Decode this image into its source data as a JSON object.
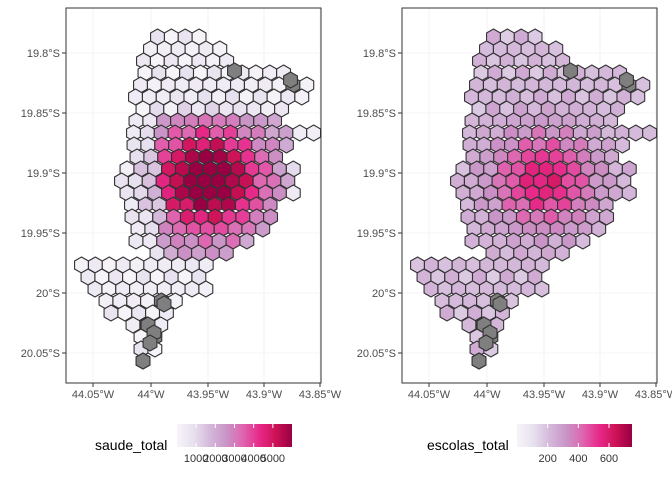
{
  "x_ticks": [
    "44.05°W",
    "44°W",
    "43.95°W",
    "43.9°W",
    "43.85°W"
  ],
  "y_ticks": [
    "19.8°S",
    "19.85°S",
    "19.9°S",
    "19.95°S",
    "20°S",
    "20.05°S"
  ],
  "colors": {
    "na_fill": "#7f7f7f",
    "hex_outline": "#333333",
    "panel_border": "#333333",
    "grid": "#ebebeb",
    "scale": [
      "#f7f4f9",
      "#e7e1ef",
      "#d4b9da",
      "#c994c7",
      "#df65b0",
      "#e7298a",
      "#ce1256",
      "#980043"
    ]
  },
  "panels": [
    {
      "id": "saude",
      "legend": {
        "title": "saude_total",
        "ticks": [
          "1000",
          "2000",
          "3000",
          "4000",
          "5000"
        ]
      }
    },
    {
      "id": "escolas",
      "legend": {
        "title": "escolas_total",
        "ticks": [
          "200",
          "400",
          "600"
        ]
      }
    }
  ],
  "chart_data": [
    {
      "type": "heatmap",
      "geometry": "hexagonal grid over Belo Horizonte (lon/lat)",
      "variable": "saude_total",
      "xlim": [
        -44.07,
        -43.85
      ],
      "ylim": [
        -20.068,
        -19.762
      ],
      "legend_range": [
        0,
        6000
      ],
      "x_ticks": [
        -44.05,
        -44.0,
        -43.95,
        -43.9,
        -43.85
      ],
      "y_ticks": [
        -19.8,
        -19.85,
        -19.9,
        -19.95,
        -20.0,
        -20.05
      ],
      "grid": true,
      "legend_position": "bottom",
      "missing_values": "gray hexes",
      "pattern": "values peak (~5000) in the central south-east core around 43.95°W 19.92°S and fall to near 0 at the edges"
    },
    {
      "type": "heatmap",
      "geometry": "hexagonal grid over Belo Horizonte (lon/lat)",
      "variable": "escolas_total",
      "xlim": [
        -44.07,
        -43.85
      ],
      "ylim": [
        -20.068,
        -19.762
      ],
      "legend_range": [
        0,
        750
      ],
      "x_ticks": [
        -44.05,
        -44.0,
        -43.95,
        -43.9,
        -43.85
      ],
      "y_ticks": [
        -19.8,
        -19.85,
        -19.9,
        -19.95,
        -20.0,
        -20.05
      ],
      "grid": true,
      "legend_position": "bottom",
      "missing_values": "gray hexes",
      "pattern": "moderate values (~200–400) across most of the city, peak (~700) around 43.95°W 19.92°S"
    }
  ]
}
